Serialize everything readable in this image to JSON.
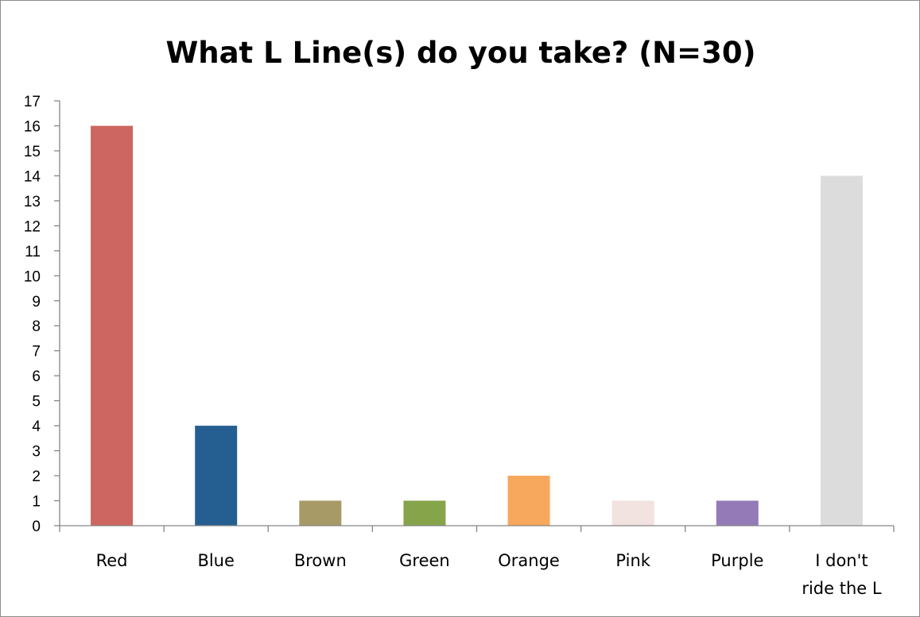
{
  "chart_data": {
    "type": "bar",
    "title": "What L Line(s) do you take? (N=30)",
    "categories": [
      "Red",
      "Blue",
      "Brown",
      "Green",
      "Orange",
      "Pink",
      "Purple",
      "I don't ride the L"
    ],
    "category_lines": [
      [
        "Red"
      ],
      [
        "Blue"
      ],
      [
        "Brown"
      ],
      [
        "Green"
      ],
      [
        "Orange"
      ],
      [
        "Pink"
      ],
      [
        "Purple"
      ],
      [
        "I don't",
        "ride the L"
      ]
    ],
    "values": [
      16,
      4,
      1,
      1,
      2,
      1,
      1,
      14
    ],
    "colors": [
      "#cd6560",
      "#255f92",
      "#a89a66",
      "#86a44a",
      "#f8a85c",
      "#f2e2e0",
      "#957ab8",
      "#dcdcdc"
    ],
    "ylim": [
      0,
      17
    ],
    "yticks": [
      0,
      1,
      2,
      3,
      4,
      5,
      6,
      7,
      8,
      9,
      10,
      11,
      12,
      13,
      14,
      15,
      16,
      17
    ],
    "grid": false,
    "legend": "none",
    "xlabel": "",
    "ylabel": ""
  }
}
